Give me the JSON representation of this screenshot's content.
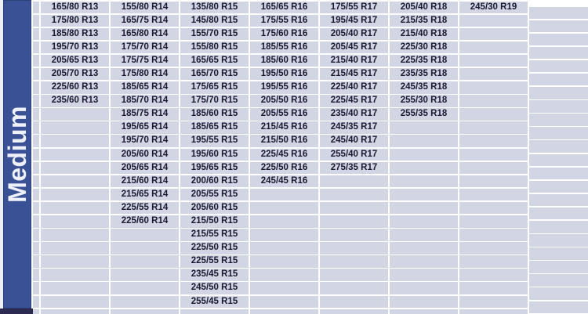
{
  "sidebar": {
    "label": "Medium"
  },
  "colors": {
    "band": "#3a5295",
    "cell": "#d2d5e3",
    "text": "#191931",
    "divider": "#2d2a52",
    "separator": "#ffffff"
  },
  "chart_data": {
    "type": "table",
    "category": "Medium",
    "visible_row_count": 23,
    "columns": [
      {
        "rim": "R13",
        "sizes": [
          "165/80 R13",
          "175/80 R13",
          "185/80 R13",
          "195/70 R13",
          "205/65 R13",
          "205/70 R13",
          "225/60 R13",
          "235/60 R13"
        ]
      },
      {
        "rim": "R14",
        "sizes": [
          "155/80 R14",
          "165/75 R14",
          "165/80 R14",
          "175/70 R14",
          "175/75 R14",
          "175/80 R14",
          "185/65 R14",
          "185/70 R14",
          "185/75 R14",
          "195/65 R14",
          "195/70 R14",
          "205/60 R14",
          "205/65 R14",
          "215/60 R14",
          "215/65 R14",
          "225/55 R14",
          "225/60 R14"
        ]
      },
      {
        "rim": "R15",
        "sizes": [
          "135/80 R15",
          "145/80 R15",
          "155/70 R15",
          "155/80 R15",
          "165/65 R15",
          "165/70 R15",
          "175/65 R15",
          "175/70 R15",
          "185/60 R15",
          "185/65 R15",
          "195/55 R15",
          "195/60 R15",
          "195/65 R15",
          "200/60 R15",
          "205/55 R15",
          "205/60 R15",
          "215/50 R15",
          "215/55 R15",
          "225/50 R15",
          "225/55 R15",
          "235/45 R15",
          "245/50 R15",
          "255/45 R15"
        ]
      },
      {
        "rim": "R16",
        "sizes": [
          "165/65 R16",
          "175/55 R16",
          "175/60 R16",
          "185/55 R16",
          "185/60 R16",
          "195/50 R16",
          "195/55 R16",
          "205/50 R16",
          "205/55 R16",
          "215/45 R16",
          "215/50 R16",
          "225/45 R16",
          "225/50 R16",
          "245/45 R16"
        ]
      },
      {
        "rim": "R17",
        "sizes": [
          "175/55 R17",
          "195/45 R17",
          "205/40 R17",
          "205/45 R17",
          "215/40 R17",
          "215/45 R17",
          "225/40 R17",
          "225/45 R17",
          "235/40 R17",
          "245/35 R17",
          "245/40 R17",
          "255/40 R17",
          "275/35 R17"
        ]
      },
      {
        "rim": "R18",
        "sizes": [
          "205/40 R18",
          "215/35 R18",
          "215/40 R18",
          "225/30 R18",
          "225/35 R18",
          "235/35 R18",
          "245/35 R18",
          "255/30 R18",
          "255/35 R18"
        ]
      },
      {
        "rim": "R19",
        "sizes": [
          "245/30 R19"
        ]
      }
    ]
  }
}
